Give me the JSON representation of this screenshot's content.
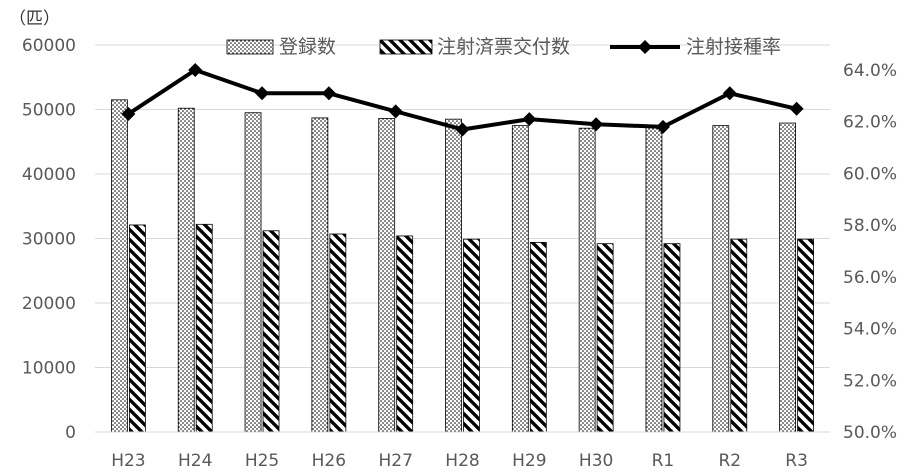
{
  "chart_data": {
    "type": "bar",
    "categories": [
      "H23",
      "H24",
      "H25",
      "H26",
      "H27",
      "H28",
      "H29",
      "H30",
      "R1",
      "R2",
      "R3"
    ],
    "series": [
      {
        "name": "登録数",
        "type": "bar",
        "axis": "left",
        "pattern": "dots",
        "values": [
          51500,
          50200,
          49500,
          48700,
          48600,
          48500,
          47500,
          47100,
          47500,
          47500,
          47900
        ]
      },
      {
        "name": "注射済票交付数",
        "type": "bar",
        "axis": "left",
        "pattern": "diagonal-stripes",
        "values": [
          32100,
          32200,
          31200,
          30700,
          30400,
          29900,
          29400,
          29200,
          29200,
          29900,
          29900
        ]
      },
      {
        "name": "注射接種率",
        "type": "line",
        "axis": "right",
        "marker": "diamond",
        "values": [
          62.3,
          64.0,
          63.1,
          63.1,
          62.4,
          61.7,
          62.1,
          61.9,
          61.8,
          63.1,
          62.5
        ]
      }
    ],
    "left_axis": {
      "unit_label": "（匹）",
      "ylim": [
        0,
        60000
      ],
      "tick_labels": [
        "0",
        "10000",
        "20000",
        "30000",
        "40000",
        "50000",
        "60000"
      ]
    },
    "right_axis": {
      "ylim": [
        50,
        64
      ],
      "tick_labels": [
        "50.0%",
        "52.0%",
        "54.0%",
        "56.0%",
        "58.0%",
        "60.0%",
        "62.0%",
        "64.0%"
      ]
    },
    "grid": true,
    "legend_position": "top",
    "colors": {
      "grid": "#d9d9d9",
      "bar_stroke": "#000000",
      "line": "#000000",
      "text": "#595959"
    }
  }
}
